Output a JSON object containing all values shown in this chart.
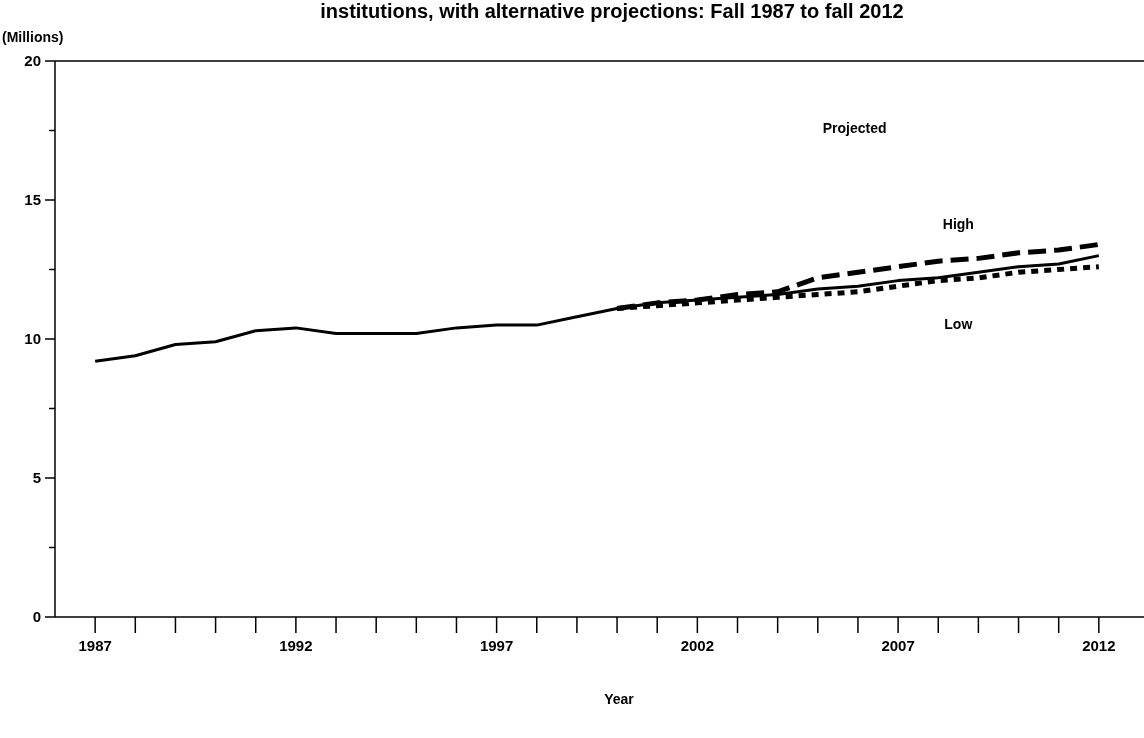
{
  "chart_data": {
    "type": "line",
    "title": "institutions, with alternative projections: Fall 1987 to fall 2012",
    "xlabel": "Year",
    "ylabel": "(Millions)",
    "x": [
      1987,
      1988,
      1989,
      1990,
      1991,
      1992,
      1993,
      1994,
      1995,
      1996,
      1997,
      1998,
      1999,
      2000,
      2001,
      2002,
      2003,
      2004,
      2005,
      2006,
      2007,
      2008,
      2009,
      2010,
      2011,
      2012
    ],
    "series": [
      {
        "color": "#000000",
        "line_style": "solid",
        "values": [
          9.2,
          9.4,
          9.8,
          9.9,
          10.3,
          10.4,
          10.2,
          10.2,
          10.2,
          10.4,
          10.5,
          10.5,
          10.8,
          11.1,
          11.3,
          11.4,
          11.5,
          11.6,
          11.8,
          11.9,
          12.1,
          12.2,
          12.4,
          12.6,
          12.7,
          13.0
        ]
      },
      {
        "color": "#000000",
        "line_style": "dashed",
        "x": [
          2000,
          2001,
          2002,
          2003,
          2004,
          2005,
          2006,
          2007,
          2008,
          2009,
          2010,
          2011,
          2012
        ],
        "values": [
          11.1,
          11.3,
          11.4,
          11.6,
          11.7,
          12.2,
          12.4,
          12.6,
          12.8,
          12.9,
          13.1,
          13.2,
          13.4
        ]
      },
      {
        "color": "#000000",
        "line_style": "dotted",
        "x": [
          2000,
          2001,
          2002,
          2003,
          2004,
          2005,
          2006,
          2007,
          2008,
          2009,
          2010,
          2011,
          2012
        ],
        "values": [
          11.1,
          11.2,
          11.3,
          11.4,
          11.5,
          11.6,
          11.7,
          11.9,
          12.1,
          12.2,
          12.4,
          12.5,
          12.6
        ]
      }
    ],
    "annotations": [
      "Projected",
      {
        "text": "High",
        "x": 2008.5,
        "y": 12.8
      },
      {
        "text": "Low",
        "x": 2008.5,
        "y": 12.1
      }
    ],
    "xlim": [
      1986,
      2013.1
    ],
    "ylim": [
      0,
      20
    ],
    "xticks": [
      1987,
      {
        "value": 1988,
        "label": null
      },
      {
        "value": 1989,
        "label": null
      },
      {
        "value": 1990,
        "label": null
      },
      {
        "value": 1991,
        "label": null
      },
      1992,
      {
        "value": 1993,
        "label": null
      },
      {
        "value": 1994,
        "label": null
      },
      {
        "value": 1995,
        "label": null
      },
      {
        "value": 1996,
        "label": null
      },
      1997,
      {
        "value": 1998,
        "label": null
      },
      {
        "value": 1999,
        "label": null
      },
      {
        "value": 2000,
        "label": null
      },
      {
        "value": 2001,
        "label": null
      },
      2002,
      {
        "value": 2003,
        "label": null
      },
      {
        "value": 2004,
        "label": null
      },
      {
        "value": 2005,
        "label": null
      },
      {
        "value": 2006,
        "label": null
      },
      2007,
      {
        "value": 2008,
        "label": null
      },
      {
        "value": 2009,
        "label": null
      },
      {
        "value": 2010,
        "label": null
      },
      {
        "value": 2011,
        "label": null
      },
      2012
    ],
    "yticks": [
      0,
      {
        "value": 2.5,
        "label": null
      },
      5,
      {
        "value": 7.5,
        "label": null
      },
      10,
      {
        "value": 12.5,
        "label": null
      },
      15,
      {
        "value": 17.5,
        "label": null
      },
      20
    ],
    "grid": false,
    "marker": "none"
  }
}
